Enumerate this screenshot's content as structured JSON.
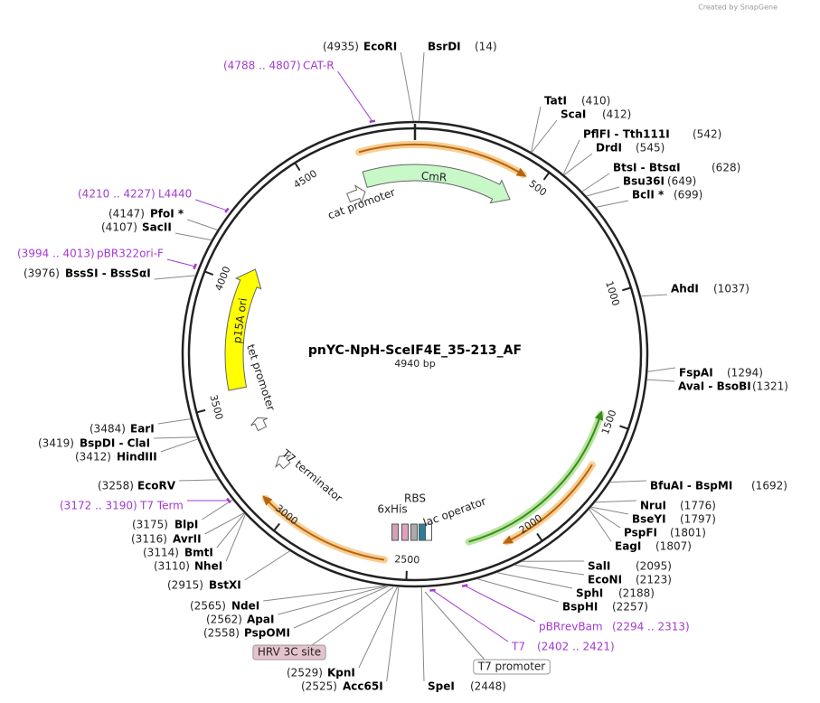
{
  "credit": "Created by SnapGene",
  "title": "pnYC-NpH-SceIF4E_35-213_AF",
  "length": "4940 bp",
  "ruler": {
    "ticks": [
      500,
      1000,
      1500,
      2000,
      2500,
      3000,
      3500,
      4000,
      4500
    ]
  },
  "enzymes": [
    {
      "label": "EcoRI",
      "site": "(4935)"
    },
    {
      "label": "BsrDI",
      "site": "(14)"
    },
    {
      "label": "TatI",
      "site": "(410)"
    },
    {
      "label": "ScaI",
      "site": "(412)"
    },
    {
      "label": "PflFI - Tth111I",
      "site": "(542)"
    },
    {
      "label": "DrdI",
      "site": "(545)"
    },
    {
      "label": "BtsI - BtsαI",
      "site": "(628)"
    },
    {
      "label": "Bsu36I",
      "site": "(649)"
    },
    {
      "label": "BclI *",
      "site": "(699)"
    },
    {
      "label": "AhdI",
      "site": "(1037)"
    },
    {
      "label": "FspAI",
      "site": "(1294)"
    },
    {
      "label": "AvaI - BsoBI",
      "site": "(1321)"
    },
    {
      "label": "BfuAI - BspMI",
      "site": "(1692)"
    },
    {
      "label": "NruI",
      "site": "(1776)"
    },
    {
      "label": "BseYI",
      "site": "(1797)"
    },
    {
      "label": "PspFI",
      "site": "(1801)"
    },
    {
      "label": "EagI",
      "site": "(1807)"
    },
    {
      "label": "SalI",
      "site": "(2095)"
    },
    {
      "label": "EcoNI",
      "site": "(2123)"
    },
    {
      "label": "SphI",
      "site": "(2188)"
    },
    {
      "label": "BspHI",
      "site": "(2257)"
    },
    {
      "label": "SpeI",
      "site": "(2448)"
    },
    {
      "label": "KpnI",
      "site": "(2529)"
    },
    {
      "label": "Acc65I",
      "site": "(2525)"
    },
    {
      "label": "PspOMI",
      "site": "(2558)"
    },
    {
      "label": "ApaI",
      "site": "(2562)"
    },
    {
      "label": "NdeI",
      "site": "(2565)"
    },
    {
      "label": "BstXI",
      "site": "(2915)"
    },
    {
      "label": "BlpI",
      "site": "(3175)"
    },
    {
      "label": "AvrII",
      "site": "(3116)"
    },
    {
      "label": "BmtI",
      "site": "(3114)"
    },
    {
      "label": "NheI",
      "site": "(3110)"
    },
    {
      "label": "EcoRV",
      "site": "(3258)"
    },
    {
      "label": "HindIII",
      "site": "(3412)"
    },
    {
      "label": "BspDI - ClaI",
      "site": "(3419)"
    },
    {
      "label": "EarI",
      "site": "(3484)"
    },
    {
      "label": "BssSI - BssSαI",
      "site": "(3976)"
    },
    {
      "label": "SacII",
      "site": "(4107)"
    },
    {
      "label": "PfoI *",
      "site": "(4147)"
    }
  ],
  "primers": [
    {
      "label": "CAT-R",
      "range": "(4788 .. 4807)"
    },
    {
      "label": "L4440",
      "range": "(4210 .. 4227)"
    },
    {
      "label": "pBR322ori-F",
      "range": "(3994 .. 4013)"
    },
    {
      "label": "T7 Term",
      "range": "(3172 .. 3190)"
    },
    {
      "label": "pBRrevBam",
      "range": "(2294 .. 2313)"
    },
    {
      "label": "T7",
      "range": "(2402 .. 2421)"
    }
  ],
  "boxed_features": [
    {
      "label": "HRV 3C site"
    },
    {
      "label": "T7 promoter"
    }
  ],
  "inner_features": [
    {
      "label": "CmR"
    },
    {
      "label": "cat promoter"
    },
    {
      "label": "p15A ori"
    },
    {
      "label": "tet promoter"
    },
    {
      "label": "T7 terminator"
    },
    {
      "label": "6xHis"
    },
    {
      "label": "RBS"
    },
    {
      "label": "lac operator"
    }
  ]
}
